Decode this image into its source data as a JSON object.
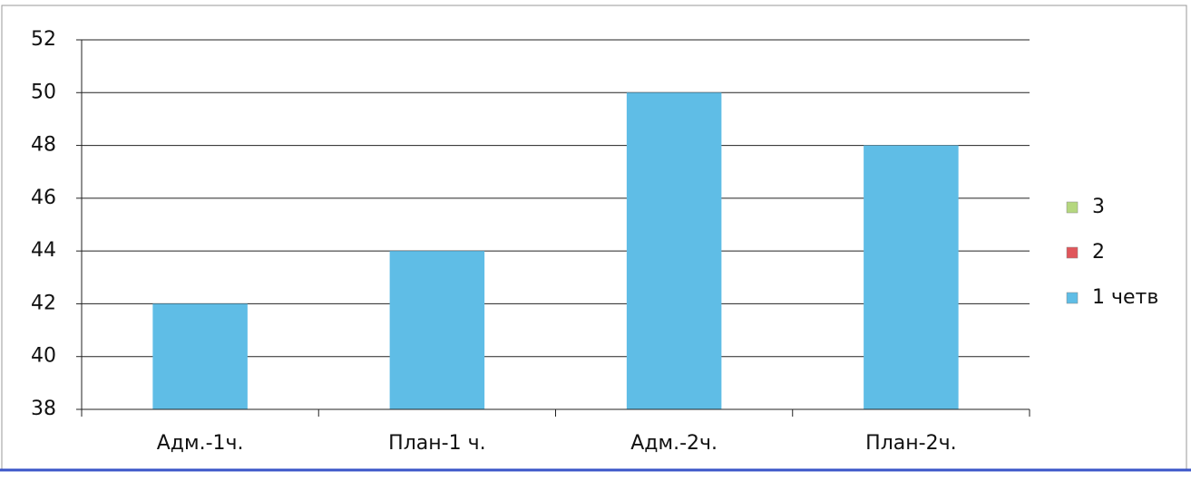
{
  "chart_data": {
    "type": "bar",
    "categories": [
      "Адм.-1ч.",
      "План-1 ч.",
      "Адм.-2ч.",
      "План-2ч."
    ],
    "series": [
      {
        "name": "3",
        "color": "#b5d77f",
        "values": [
          null,
          null,
          null,
          null
        ]
      },
      {
        "name": "2",
        "color": "#e0565b",
        "values": [
          null,
          null,
          null,
          null
        ]
      },
      {
        "name": "1 четв",
        "color": "#5fbde6",
        "values": [
          42,
          44,
          50,
          48
        ]
      }
    ],
    "ylim": [
      38,
      52
    ],
    "yticks": [
      38,
      40,
      42,
      44,
      46,
      48,
      50,
      52
    ],
    "grid": true,
    "legend": "right"
  }
}
